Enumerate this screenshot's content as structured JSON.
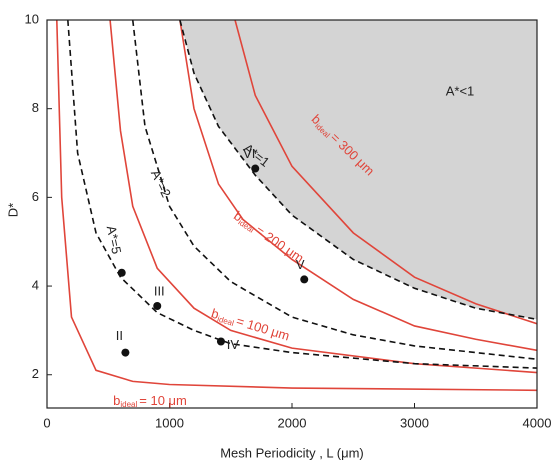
{
  "chart_data": {
    "type": "line",
    "xlabel": "Mesh Periodicity , L (μm)",
    "ylabel": "D*",
    "xlim": [
      0,
      4000
    ],
    "ylim": [
      1.25,
      10
    ],
    "xticks": [
      0,
      1000,
      2000,
      3000,
      4000
    ],
    "yticks": [
      2,
      4,
      6,
      8,
      10
    ],
    "annotation": "A*<1",
    "series": [
      {
        "label": {
          "b": "b",
          "sub": "ideal",
          "rest": "= 10 μm"
        },
        "color": "#e0453a",
        "style": "solid",
        "x": [
          80,
          120,
          200,
          400,
          700,
          1000,
          2000,
          4000
        ],
        "values": [
          10,
          6,
          3.3,
          2.1,
          1.85,
          1.78,
          1.7,
          1.65
        ]
      },
      {
        "label": {
          "b": "b",
          "sub": "ideal",
          "rest": "= 100 μm"
        },
        "color": "#e0453a",
        "style": "solid",
        "x": [
          515,
          600,
          700,
          900,
          1200,
          1500,
          2000,
          3000,
          4000
        ],
        "values": [
          10,
          7.5,
          5.8,
          4.4,
          3.5,
          3.0,
          2.6,
          2.25,
          2.05
        ]
      },
      {
        "label": {
          "b": "b",
          "sub": "ideal",
          "rest": "= 200 μm"
        },
        "color": "#e0453a",
        "style": "solid",
        "x": [
          1085,
          1200,
          1400,
          1600,
          2000,
          2500,
          3000,
          3500,
          4000
        ],
        "values": [
          10,
          8.0,
          6.3,
          5.5,
          4.6,
          3.7,
          3.1,
          2.8,
          2.55
        ]
      },
      {
        "label": {
          "b": "b",
          "sub": "ideal",
          "rest": "= 300 μm"
        },
        "color": "#e0453a",
        "style": "solid",
        "x": [
          1535,
          1700,
          2000,
          2500,
          3000,
          3500,
          4000
        ],
        "values": [
          10,
          8.3,
          6.7,
          5.2,
          4.2,
          3.6,
          3.15
        ]
      },
      {
        "name": "A*=5",
        "color": "#111111",
        "style": "dashed",
        "x": [
          170,
          250,
          400,
          600,
          900,
          1200,
          1500,
          2000,
          3000,
          4000
        ],
        "values": [
          10,
          7,
          5.2,
          4.2,
          3.4,
          3.0,
          2.7,
          2.5,
          2.25,
          2.15
        ]
      },
      {
        "name": "A*=2",
        "color": "#111111",
        "style": "dashed",
        "x": [
          700,
          800,
          1000,
          1200,
          1500,
          2000,
          2500,
          3000,
          4000
        ],
        "values": [
          10,
          7.6,
          5.8,
          4.9,
          4.1,
          3.3,
          2.9,
          2.65,
          2.35
        ]
      },
      {
        "name": "A*=1",
        "color": "#111111",
        "style": "dashed",
        "fill": "#d4d4d4",
        "x": [
          1085,
          1200,
          1400,
          1700,
          2000,
          2500,
          3000,
          3500,
          4000
        ],
        "values": [
          10,
          8.8,
          7.6,
          6.5,
          5.6,
          4.6,
          3.95,
          3.5,
          3.25
        ]
      }
    ],
    "points": {
      "color": "#111111",
      "x": [
        640,
        900,
        1420,
        2100,
        1700,
        610
      ],
      "values": [
        2.5,
        3.55,
        2.75,
        4.15,
        6.65,
        4.3
      ],
      "labels": [
        "II",
        "III",
        "IV",
        "V",
        "VI",
        null
      ]
    }
  }
}
